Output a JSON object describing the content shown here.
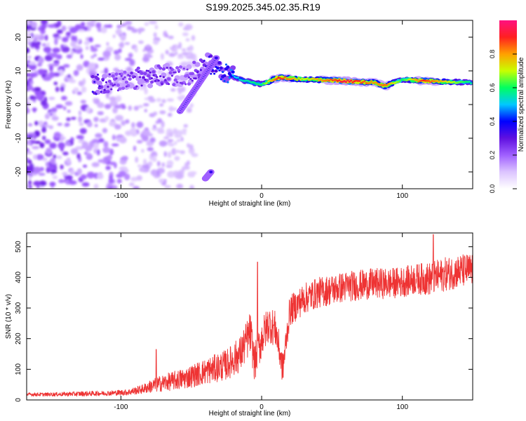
{
  "title": "S199.2025.345.02.35.R19",
  "colors": {
    "line": "#ee3333",
    "background": "#ffffff",
    "axis": "#000000"
  },
  "chart_data": [
    {
      "type": "heatmap",
      "name": "spectrogram",
      "xlabel": "Height of straight line (km)",
      "ylabel": "Frequency (Hz)",
      "xlim": [
        -167,
        150
      ],
      "ylim": [
        -25,
        25
      ],
      "xticks": [
        -100,
        0,
        100
      ],
      "yticks": [
        -20,
        -10,
        0,
        10,
        20
      ],
      "colorbar": {
        "label": "Normalized spectral amplitude",
        "range": [
          0,
          1
        ],
        "ticks": [
          "0.0",
          "0.2",
          "0.4",
          "0.6",
          "0.8"
        ],
        "colormap": [
          "#ffffff",
          "#dcc4ff",
          "#a060ff",
          "#6010e0",
          "#0000ff",
          "#00c8ff",
          "#00ff60",
          "#c8ff00",
          "#ffa000",
          "#ff2020",
          "#ff1080"
        ]
      },
      "ridge": {
        "description": "dominant frequency ridge vs height",
        "points": [
          {
            "x": -120,
            "y": 6,
            "amp": 0.35
          },
          {
            "x": -100,
            "y": 7,
            "amp": 0.25
          },
          {
            "x": -85,
            "y": 8,
            "amp": 0.3
          },
          {
            "x": -70,
            "y": 9,
            "amp": 0.3
          },
          {
            "x": -55,
            "y": 8,
            "amp": 0.25
          },
          {
            "x": -38,
            "y": 12,
            "amp": 0.35
          },
          {
            "x": -25,
            "y": 9,
            "amp": 0.45
          },
          {
            "x": -12,
            "y": 7,
            "amp": 0.55
          },
          {
            "x": 0,
            "y": 6,
            "amp": 0.6
          },
          {
            "x": 12,
            "y": 8,
            "amp": 0.9
          },
          {
            "x": 30,
            "y": 7.5,
            "amp": 0.7
          },
          {
            "x": 60,
            "y": 7,
            "amp": 0.95
          },
          {
            "x": 80,
            "y": 6.5,
            "amp": 0.8
          },
          {
            "x": 88,
            "y": 5.5,
            "amp": 0.85
          },
          {
            "x": 100,
            "y": 7.5,
            "amp": 0.6
          },
          {
            "x": 115,
            "y": 7,
            "amp": 0.9
          },
          {
            "x": 150,
            "y": 6.5,
            "amp": 0.55
          }
        ],
        "branches": [
          {
            "from": [
              -58,
              -2
            ],
            "to": [
              -32,
              14
            ],
            "amp": 0.35
          },
          {
            "from": [
              -40,
              -22
            ],
            "to": [
              -36,
              -20
            ],
            "amp": 0.35
          }
        ]
      },
      "noise": "scattered low-amplitude purple blobs at heights below about -60 km across all frequencies"
    },
    {
      "type": "line",
      "name": "snr",
      "xlabel": "Height of straight line (km)",
      "ylabel": "SNR (10 * v/v)",
      "xlim": [
        -167,
        150
      ],
      "ylim": [
        0,
        545
      ],
      "xticks": [
        -100,
        0,
        100
      ],
      "yticks": [
        0,
        100,
        200,
        300,
        400,
        500
      ],
      "series": [
        {
          "name": "SNR",
          "x": [
            -167,
            -150,
            -130,
            -110,
            -95,
            -85,
            -75,
            -65,
            -55,
            -45,
            -35,
            -25,
            -15,
            -8,
            -5,
            0,
            5,
            10,
            15,
            20,
            25,
            30,
            40,
            50,
            60,
            70,
            80,
            90,
            100,
            110,
            120,
            130,
            140,
            150
          ],
          "y": [
            18,
            18,
            20,
            22,
            25,
            35,
            50,
            60,
            70,
            85,
            100,
            115,
            150,
            220,
            120,
            200,
            250,
            230,
            100,
            290,
            310,
            330,
            350,
            360,
            370,
            375,
            380,
            380,
            385,
            395,
            395,
            410,
            420,
            425
          ],
          "noise_amplitude": [
            6,
            6,
            8,
            8,
            10,
            15,
            25,
            30,
            35,
            40,
            45,
            50,
            60,
            70,
            60,
            65,
            60,
            60,
            50,
            50,
            50,
            50,
            50,
            50,
            50,
            50,
            50,
            50,
            50,
            50,
            55,
            55,
            55,
            55
          ],
          "peaks": [
            {
              "x": -3,
              "y": 450
            },
            {
              "x": 122,
              "y": 540
            },
            {
              "x": -75,
              "y": 165
            }
          ]
        }
      ]
    }
  ]
}
